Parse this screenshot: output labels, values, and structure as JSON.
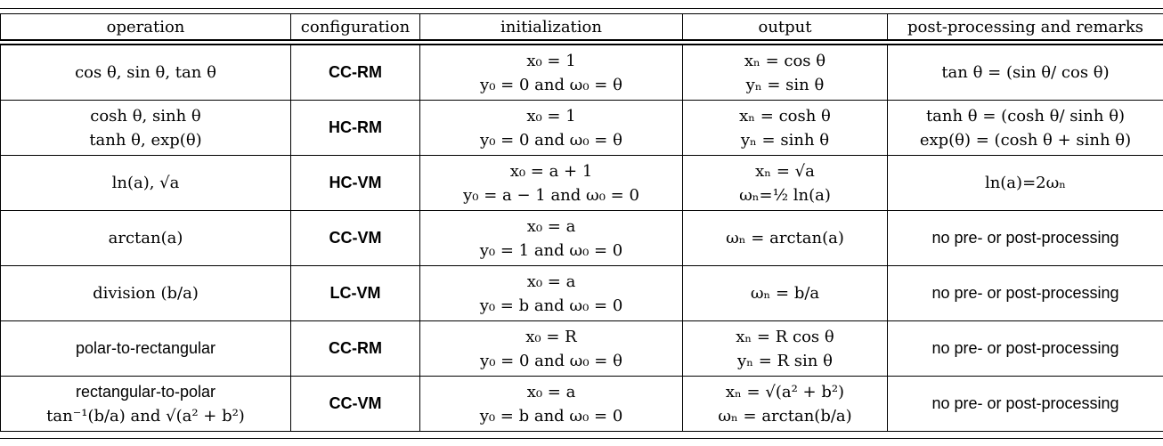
{
  "table": {
    "headers": [
      "operation",
      "configuration",
      "initialization",
      "output",
      "post-processing and remarks"
    ],
    "rows": [
      {
        "operation": [
          "cos θ, sin θ, tan θ"
        ],
        "configuration": "CC-RM",
        "initialization": [
          "x₀ = 1",
          "y₀ = 0 and ω₀ = θ"
        ],
        "output": [
          "xₙ = cos θ",
          "yₙ = sin θ"
        ],
        "remarks": [
          "tan θ = (sin θ/ cos θ)"
        ]
      },
      {
        "operation": [
          "cosh θ, sinh θ",
          "tanh θ, exp(θ)"
        ],
        "configuration": "HC-RM",
        "initialization": [
          "x₀ = 1",
          "y₀ = 0 and ω₀ = θ"
        ],
        "output": [
          "xₙ = cosh θ",
          "yₙ = sinh θ"
        ],
        "remarks": [
          "tanh θ = (cosh θ/ sinh θ)",
          "exp(θ) = (cosh θ + sinh θ)"
        ]
      },
      {
        "operation": [
          "ln(a), √a"
        ],
        "configuration": "HC-VM",
        "initialization": [
          "x₀ = a + 1",
          "y₀ = a − 1 and ω₀ = 0"
        ],
        "output": [
          "xₙ = √a",
          "ωₙ=½ ln(a)"
        ],
        "remarks": [
          "ln(a)=2ωₙ"
        ]
      },
      {
        "operation": [
          "arctan(a)"
        ],
        "configuration": "CC-VM",
        "initialization": [
          "x₀ = a",
          "y₀ = 1 and ω₀ = 0"
        ],
        "output": [
          "ωₙ = arctan(a)"
        ],
        "remarks": [
          "no pre- or post-processing"
        ]
      },
      {
        "operation": [
          "division (b/a)"
        ],
        "configuration": "LC-VM",
        "initialization": [
          "x₀ = a",
          "y₀ = b and ω₀ = 0"
        ],
        "output": [
          "ωₙ = b/a"
        ],
        "remarks": [
          "no pre- or post-processing"
        ]
      },
      {
        "operation": [
          "polar-to-rectangular"
        ],
        "configuration": "CC-RM",
        "initialization": [
          "x₀ = R",
          "y₀ = 0 and ω₀ = θ"
        ],
        "output": [
          "xₙ = R cos θ",
          "yₙ = R sin θ"
        ],
        "remarks": [
          "no pre- or post-processing"
        ]
      },
      {
        "operation": [
          "rectangular-to-polar",
          "tan⁻¹(b/a) and √(a² + b²)"
        ],
        "configuration": "CC-VM",
        "initialization": [
          "x₀ = a",
          "y₀ = b and ω₀ = 0"
        ],
        "output": [
          "xₙ = √(a² + b²)",
          "ωₙ = arctan(b/a)"
        ],
        "remarks": [
          "no pre- or post-processing"
        ]
      }
    ]
  }
}
